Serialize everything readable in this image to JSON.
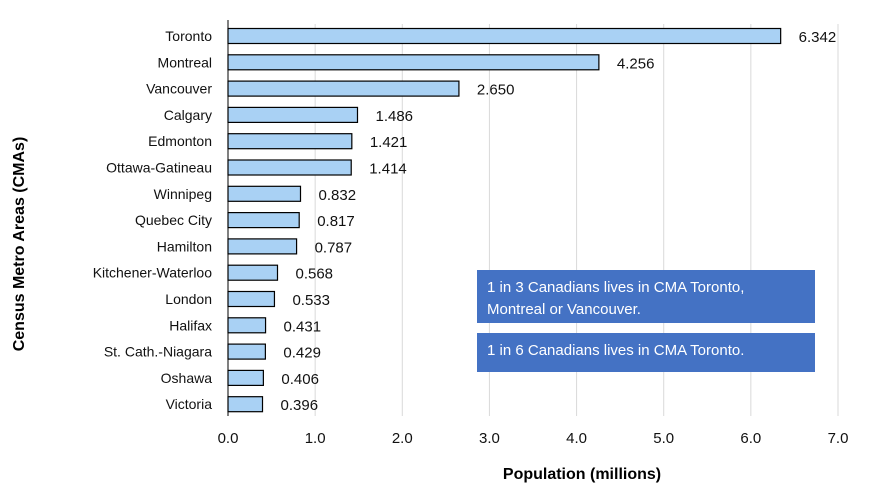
{
  "chart_data": {
    "type": "bar",
    "orientation": "horizontal",
    "categories": [
      "Toronto",
      "Montreal",
      "Vancouver",
      "Calgary",
      "Edmonton",
      "Ottawa-Gatineau",
      "Winnipeg",
      "Quebec City",
      "Hamilton",
      "Kitchener-Waterloo",
      "London",
      "Halifax",
      "St. Cath.-Niagara",
      "Oshawa",
      "Victoria"
    ],
    "values": [
      6.342,
      4.256,
      2.65,
      1.486,
      1.421,
      1.414,
      0.832,
      0.817,
      0.787,
      0.568,
      0.533,
      0.431,
      0.429,
      0.406,
      0.396
    ],
    "value_labels": [
      "6.342",
      "4.256",
      "2.650",
      "1.486",
      "1.421",
      "1.414",
      "0.832",
      "0.817",
      "0.787",
      "0.568",
      "0.533",
      "0.431",
      "0.429",
      "0.406",
      "0.396"
    ],
    "xlabel": "Population (millions)",
    "ylabel": "Census Metro Areas (CMAs)",
    "xlim": [
      0,
      7
    ],
    "xticks": [
      0,
      1,
      2,
      3,
      4,
      5,
      6,
      7
    ],
    "xtick_labels": [
      "0.0",
      "1.0",
      "2.0",
      "3.0",
      "4.0",
      "5.0",
      "6.0",
      "7.0"
    ],
    "grid": true,
    "bar_color": "#a9d1f4",
    "bar_edge_color": "#000000",
    "annotations": [
      {
        "lines": [
          "1 in 3 Canadians lives in CMA Toronto,",
          "Montreal or Vancouver."
        ],
        "color": "#4472c4"
      },
      {
        "lines": [
          "1 in 6 Canadians lives in CMA Toronto."
        ],
        "color": "#4472c4"
      }
    ]
  }
}
